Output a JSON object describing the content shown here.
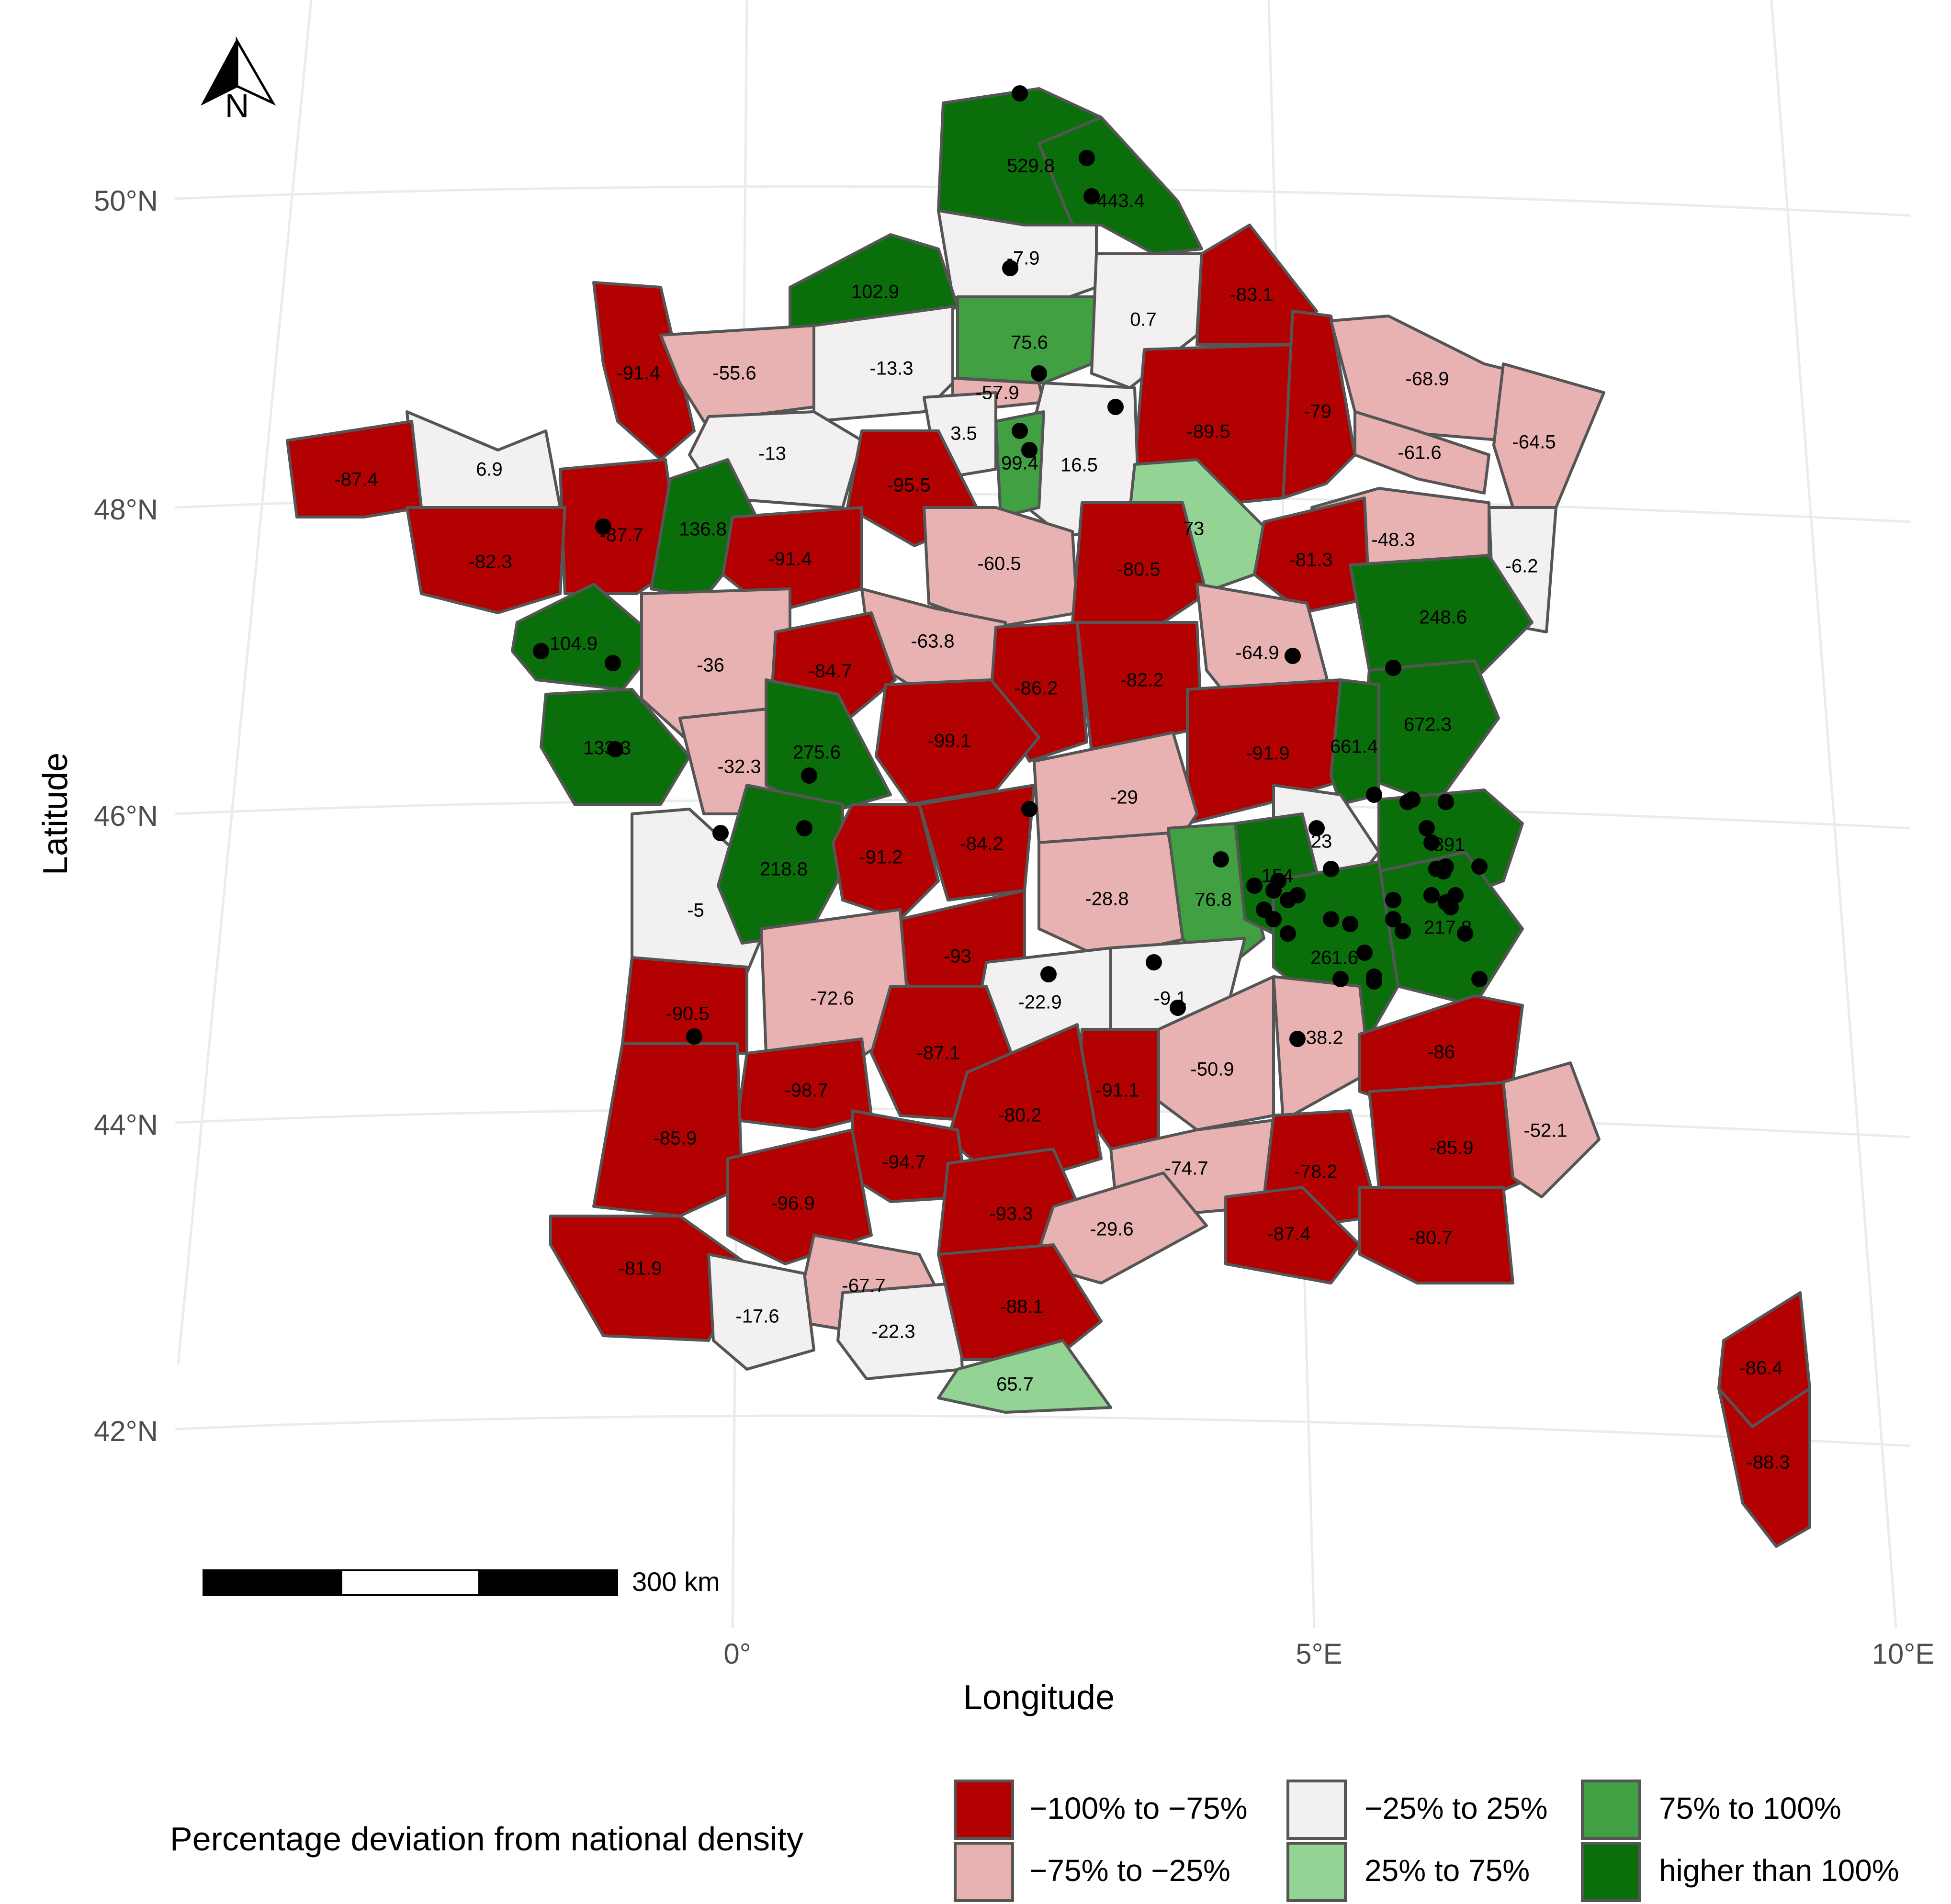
{
  "map": {
    "x_axis_title": "Longitude",
    "y_axis_title": "Latitude",
    "x_ticks": [
      "0°",
      "5°E",
      "10°E"
    ],
    "y_ticks": [
      "50°N",
      "48°N",
      "46°N",
      "44°N",
      "42°N"
    ],
    "north_arrow_label": "N",
    "scale_bar_label": "300 km"
  },
  "legend": {
    "title": "Percentage deviation from national density",
    "items": [
      {
        "label": "−100% to −75%",
        "color": "#b30000"
      },
      {
        "label": "−75% to −25%",
        "color": "#e8b2b2"
      },
      {
        "label": "−25% to 25%",
        "color": "#f2f0f0"
      },
      {
        "label": "25% to 75%",
        "color": "#93d393"
      },
      {
        "label": "75% to 100%",
        "color": "#41a041"
      },
      {
        "label": "higher than 100%",
        "color": "#0a6e0a"
      }
    ]
  },
  "departments": [
    {
      "value": "529.8",
      "class": 5
    },
    {
      "value": "443.4",
      "class": 5
    },
    {
      "value": "-7.9",
      "class": 2
    },
    {
      "value": "102.9",
      "class": 5
    },
    {
      "value": "75.6",
      "class": 4
    },
    {
      "value": "0.7",
      "class": 2
    },
    {
      "value": "-83.1",
      "class": 0
    },
    {
      "value": "-91.4",
      "class": 0
    },
    {
      "value": "-55.6",
      "class": 1
    },
    {
      "value": "-13.3",
      "class": 2
    },
    {
      "value": "-57.9",
      "class": 1
    },
    {
      "value": "-89.5",
      "class": 0
    },
    {
      "value": "-79",
      "class": 0
    },
    {
      "value": "-68.9",
      "class": 1
    },
    {
      "value": "-61.6",
      "class": 1
    },
    {
      "value": "-64.5",
      "class": 1
    },
    {
      "value": "6.9",
      "class": 2
    },
    {
      "value": "-13",
      "class": 2
    },
    {
      "value": "3.5",
      "class": 2
    },
    {
      "value": "16.5",
      "class": 2
    },
    {
      "value": "99.4",
      "class": 4
    },
    {
      "value": "-87.4",
      "class": 0
    },
    {
      "value": "-87.7",
      "class": 0
    },
    {
      "value": "136.8",
      "class": 5
    },
    {
      "value": "-95.5",
      "class": 0
    },
    {
      "value": "73",
      "class": 3
    },
    {
      "value": "-48.3",
      "class": 1
    },
    {
      "value": "-82.3",
      "class": 0
    },
    {
      "value": "-91.4",
      "class": 0
    },
    {
      "value": "-60.5",
      "class": 1
    },
    {
      "value": "-80.5",
      "class": 0
    },
    {
      "value": "-81.3",
      "class": 0
    },
    {
      "value": "-6.2",
      "class": 2
    },
    {
      "value": "104.9",
      "class": 5
    },
    {
      "value": "-36",
      "class": 1
    },
    {
      "value": "-63.8",
      "class": 1
    },
    {
      "value": "248.6",
      "class": 5
    },
    {
      "value": "-64.9",
      "class": 1
    },
    {
      "value": "-84.7",
      "class": 0
    },
    {
      "value": "-86.2",
      "class": 0
    },
    {
      "value": "-82.2",
      "class": 0
    },
    {
      "value": "672.3",
      "class": 5
    },
    {
      "value": "133.3",
      "class": 5
    },
    {
      "value": "-32.3",
      "class": 1
    },
    {
      "value": "275.6",
      "class": 5
    },
    {
      "value": "-99.1",
      "class": 0
    },
    {
      "value": "-91.9",
      "class": 0
    },
    {
      "value": "661.4",
      "class": 5
    },
    {
      "value": "-29",
      "class": 1
    },
    {
      "value": "23",
      "class": 2
    },
    {
      "value": "391",
      "class": 5
    },
    {
      "value": "-5",
      "class": 2
    },
    {
      "value": "218.8",
      "class": 5
    },
    {
      "value": "-91.2",
      "class": 0
    },
    {
      "value": "-84.2",
      "class": 0
    },
    {
      "value": "-28.8",
      "class": 1
    },
    {
      "value": "76.8",
      "class": 4
    },
    {
      "value": "154",
      "class": 5
    },
    {
      "value": "217.8",
      "class": 5
    },
    {
      "value": "-93",
      "class": 0
    },
    {
      "value": "261.6",
      "class": 5
    },
    {
      "value": "-72.6",
      "class": 1
    },
    {
      "value": "-22.9",
      "class": 2
    },
    {
      "value": "-9.1",
      "class": 2
    },
    {
      "value": "-90.5",
      "class": 0
    },
    {
      "value": "-50.9",
      "class": 1
    },
    {
      "value": "-38.2",
      "class": 1
    },
    {
      "value": "-86",
      "class": 0
    },
    {
      "value": "-87.1",
      "class": 0
    },
    {
      "value": "-91.1",
      "class": 0
    },
    {
      "value": "-98.7",
      "class": 0
    },
    {
      "value": "-80.2",
      "class": 0
    },
    {
      "value": "-85.9",
      "class": 0
    },
    {
      "value": "-74.7",
      "class": 1
    },
    {
      "value": "-78.2",
      "class": 0
    },
    {
      "value": "-85.9",
      "class": 0
    },
    {
      "value": "-52.1",
      "class": 1
    },
    {
      "value": "-94.7",
      "class": 0
    },
    {
      "value": "-96.9",
      "class": 0
    },
    {
      "value": "-93.3",
      "class": 0
    },
    {
      "value": "-29.6",
      "class": 1
    },
    {
      "value": "-87.4",
      "class": 0
    },
    {
      "value": "-80.7",
      "class": 0
    },
    {
      "value": "-81.9",
      "class": 0
    },
    {
      "value": "-67.7",
      "class": 1
    },
    {
      "value": "-17.6",
      "class": 2
    },
    {
      "value": "-22.3",
      "class": 2
    },
    {
      "value": "-88.1",
      "class": 0
    },
    {
      "value": "65.7",
      "class": 3
    },
    {
      "value": "-86.4",
      "class": 0
    },
    {
      "value": "-88.3",
      "class": 0
    }
  ],
  "colors": {
    "border": "#555555",
    "grid": "#ebebeb",
    "point": "#000000"
  }
}
